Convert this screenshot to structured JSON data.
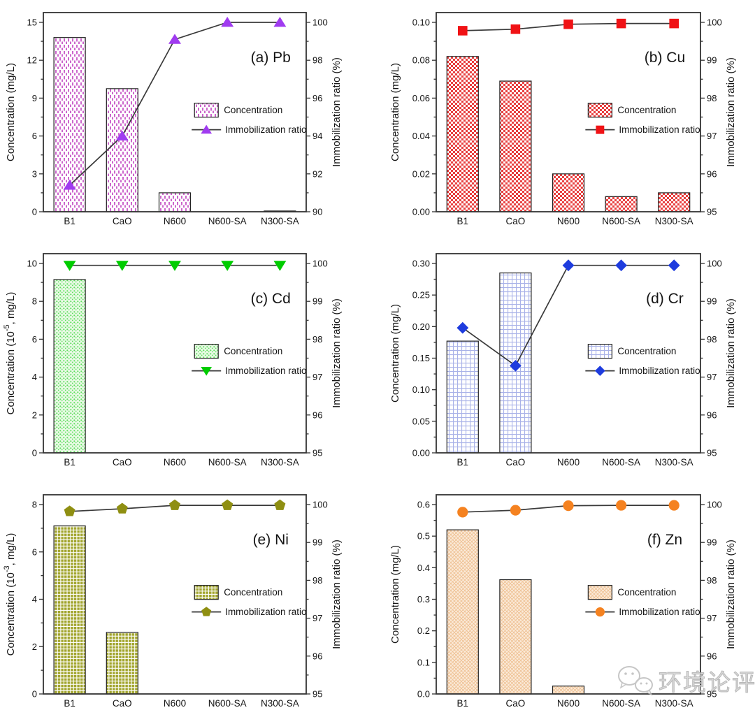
{
  "figure": {
    "background": "#ffffff",
    "panels_order": [
      "(a) Pb",
      "(b) Cu",
      "(c) Cd",
      "(d) Cr",
      "(e) Ni",
      "(f) Zn"
    ]
  },
  "chart_data": [
    {
      "panel_label": "(a) Pb",
      "type": "bar+line",
      "grid": false,
      "legend_position": "inside right",
      "categories": [
        "B1",
        "CaO",
        "N600",
        "N600-SA",
        "N300-SA"
      ],
      "series": [
        {
          "name": "Concentration",
          "kind": "bar",
          "axis": "left",
          "values": [
            13.8,
            9.75,
            1.5,
            0,
            0.06
          ]
        },
        {
          "name": "Immobilization ratio",
          "kind": "line",
          "axis": "right",
          "values": [
            91.4,
            94.0,
            99.1,
            100.0,
            100.0
          ]
        }
      ],
      "left_axis": {
        "label_pre": "Concentration (mg/L)",
        "label_sup": "",
        "label_post": "",
        "min": 0,
        "max": 15,
        "ticks": [
          0,
          3,
          6,
          9,
          12,
          15
        ],
        "tick_labels": [
          "0",
          "3",
          "6",
          "9",
          "12",
          "15"
        ]
      },
      "right_axis": {
        "label": "Immobilization ratio (%)",
        "min": 90,
        "max": 100,
        "ticks": [
          90,
          92,
          94,
          96,
          98,
          100
        ]
      },
      "legend": {
        "bar_label": "Concentration",
        "line_label": "Immobilization ratio"
      },
      "style": {
        "marker": "triangle-up",
        "marker_color": "#A03BF0",
        "line_color": "#3a3a3a",
        "pattern": "v-dash",
        "pattern_color": "#CC66CC",
        "pattern_bg": "#ffffff",
        "bar_border": "#222222"
      }
    },
    {
      "panel_label": "(b) Cu",
      "type": "bar+line",
      "grid": false,
      "legend_position": "inside right",
      "categories": [
        "B1",
        "CaO",
        "N600",
        "N600-SA",
        "N300-SA"
      ],
      "series": [
        {
          "name": "Concentration",
          "kind": "bar",
          "axis": "left",
          "values": [
            0.082,
            0.069,
            0.02,
            0.008,
            0.01
          ]
        },
        {
          "name": "Immobilization ratio",
          "kind": "line",
          "axis": "right",
          "values": [
            99.78,
            99.82,
            99.95,
            99.97,
            99.97
          ]
        }
      ],
      "left_axis": {
        "label_pre": "Concentration (mg/L)",
        "label_sup": "",
        "label_post": "",
        "min": 0,
        "max": 0.1,
        "ticks": [
          0,
          0.02,
          0.04,
          0.06,
          0.08,
          0.1
        ],
        "tick_labels": [
          "0.00",
          "0.02",
          "0.04",
          "0.06",
          "0.08",
          "0.10"
        ]
      },
      "right_axis": {
        "label": "Immobilization ratio (%)",
        "min": 95,
        "max": 100,
        "ticks": [
          95,
          96,
          97,
          98,
          99,
          100
        ]
      },
      "legend": {
        "bar_label": "Concentration",
        "line_label": "Immobilization ratio"
      },
      "style": {
        "marker": "square",
        "marker_color": "#F01215",
        "line_color": "#3a3a3a",
        "pattern": "checker",
        "pattern_color": "#E84040",
        "pattern_bg": "#ffffff",
        "bar_border": "#222222"
      }
    },
    {
      "panel_label": "(c) Cd",
      "type": "bar+line",
      "grid": false,
      "legend_position": "inside right",
      "categories": [
        "B1",
        "CaO",
        "N600",
        "N600-SA",
        "N300-SA"
      ],
      "series": [
        {
          "name": "Concentration",
          "kind": "bar",
          "axis": "left",
          "values": [
            9.15,
            0,
            0,
            0,
            0
          ]
        },
        {
          "name": "Immobilization ratio",
          "kind": "line",
          "axis": "right",
          "values": [
            99.95,
            99.95,
            99.95,
            99.95,
            99.95
          ]
        }
      ],
      "left_axis": {
        "label_pre": "Concentration (10",
        "label_sup": "-5",
        "label_post": ", mg/L)",
        "min": 0,
        "max": 10,
        "ticks": [
          0,
          2,
          4,
          6,
          8,
          10
        ],
        "tick_labels": [
          "0",
          "2",
          "4",
          "6",
          "8",
          "10"
        ]
      },
      "right_axis": {
        "label": "Immobilization ratio (%)",
        "min": 95,
        "max": 100,
        "ticks": [
          95,
          96,
          97,
          98,
          99,
          100
        ]
      },
      "legend": {
        "bar_label": "Concentration",
        "line_label": "Immobilization ratio"
      },
      "style": {
        "marker": "triangle-down",
        "marker_color": "#00CC00",
        "line_color": "#3a3a3a",
        "pattern": "speckle",
        "pattern_color": "#5BDE5B",
        "pattern_bg": "#E9FAE5",
        "bar_border": "#222222"
      }
    },
    {
      "panel_label": "(d) Cr",
      "type": "bar+line",
      "grid": false,
      "legend_position": "inside right",
      "categories": [
        "B1",
        "CaO",
        "N600",
        "N600-SA",
        "N300-SA"
      ],
      "series": [
        {
          "name": "Concentration",
          "kind": "bar",
          "axis": "left",
          "values": [
            0.177,
            0.285,
            0,
            0,
            0
          ]
        },
        {
          "name": "Immobilization ratio",
          "kind": "line",
          "axis": "right",
          "values": [
            98.3,
            97.3,
            99.95,
            99.95,
            99.95
          ]
        }
      ],
      "left_axis": {
        "label_pre": "Concentration (mg/L)",
        "label_sup": "",
        "label_post": "",
        "min": 0,
        "max": 0.3,
        "ticks": [
          0,
          0.05,
          0.1,
          0.15,
          0.2,
          0.25,
          0.3
        ],
        "tick_labels": [
          "0.00",
          "0.05",
          "0.10",
          "0.15",
          "0.20",
          "0.25",
          "0.30"
        ]
      },
      "right_axis": {
        "label": "Immobilization ratio (%)",
        "min": 95,
        "max": 100,
        "ticks": [
          95,
          96,
          97,
          98,
          99,
          100
        ]
      },
      "legend": {
        "bar_label": "Concentration",
        "line_label": "Immobilization ratio"
      },
      "style": {
        "marker": "diamond",
        "marker_color": "#1E3CDE",
        "line_color": "#3a3a3a",
        "pattern": "grid",
        "pattern_color": "#A9B2E8",
        "pattern_bg": "#ffffff",
        "bar_border": "#222222"
      }
    },
    {
      "panel_label": "(e) Ni",
      "type": "bar+line",
      "grid": false,
      "legend_position": "inside right",
      "categories": [
        "B1",
        "CaO",
        "N600",
        "N600-SA",
        "N300-SA"
      ],
      "series": [
        {
          "name": "Concentration",
          "kind": "bar",
          "axis": "left",
          "values": [
            7.1,
            2.6,
            0,
            0,
            0
          ]
        },
        {
          "name": "Immobilization ratio",
          "kind": "line",
          "axis": "right",
          "values": [
            99.82,
            99.89,
            99.98,
            99.98,
            99.98
          ]
        }
      ],
      "left_axis": {
        "label_pre": "Concentration (10",
        "label_sup": "-3",
        "label_post": ", mg/L)",
        "min": 0,
        "max": 8,
        "ticks": [
          0,
          2,
          4,
          6,
          8
        ],
        "tick_labels": [
          "0",
          "2",
          "4",
          "6",
          "8"
        ]
      },
      "right_axis": {
        "label": "Immobilization ratio (%)",
        "min": 95,
        "max": 100,
        "ticks": [
          95,
          96,
          97,
          98,
          99,
          100
        ]
      },
      "legend": {
        "bar_label": "Concentration",
        "line_label": "Immobilization ratio"
      },
      "style": {
        "marker": "pentagon",
        "marker_color": "#8F8F12",
        "line_color": "#3a3a3a",
        "pattern": "olive-check",
        "pattern_color": "#A2A52E",
        "pattern_bg": "#ffffff",
        "bar_border": "#222222"
      }
    },
    {
      "panel_label": "(f) Zn",
      "type": "bar+line",
      "grid": false,
      "legend_position": "inside right",
      "categories": [
        "B1",
        "CaO",
        "N600",
        "N600-SA",
        "N300-SA"
      ],
      "series": [
        {
          "name": "Concentration",
          "kind": "bar",
          "axis": "left",
          "values": [
            0.52,
            0.362,
            0.025,
            0,
            0
          ]
        },
        {
          "name": "Immobilization ratio",
          "kind": "line",
          "axis": "right",
          "values": [
            99.8,
            99.85,
            99.97,
            99.98,
            99.98
          ]
        }
      ],
      "left_axis": {
        "label_pre": "Concentration (mg/L)",
        "label_sup": "",
        "label_post": "",
        "min": 0,
        "max": 0.6,
        "ticks": [
          0,
          0.1,
          0.2,
          0.3,
          0.4,
          0.5,
          0.6
        ],
        "tick_labels": [
          "0.0",
          "0.1",
          "0.2",
          "0.3",
          "0.4",
          "0.5",
          "0.6"
        ]
      },
      "right_axis": {
        "label": "Immobilization ratio (%)",
        "min": 95,
        "max": 100,
        "ticks": [
          95,
          96,
          97,
          98,
          99,
          100
        ]
      },
      "legend": {
        "bar_label": "Concentration",
        "line_label": "Immobilization ratio"
      },
      "style": {
        "marker": "circle",
        "marker_color": "#F58220",
        "line_color": "#3a3a3a",
        "pattern": "mesh",
        "pattern_color": "#EFC193",
        "pattern_bg": "#FBEBDA",
        "bar_border": "#222222"
      }
    }
  ],
  "watermark": {
    "text": "环境论评",
    "icon": "wechat-icon",
    "color": "#c9c9c9"
  }
}
